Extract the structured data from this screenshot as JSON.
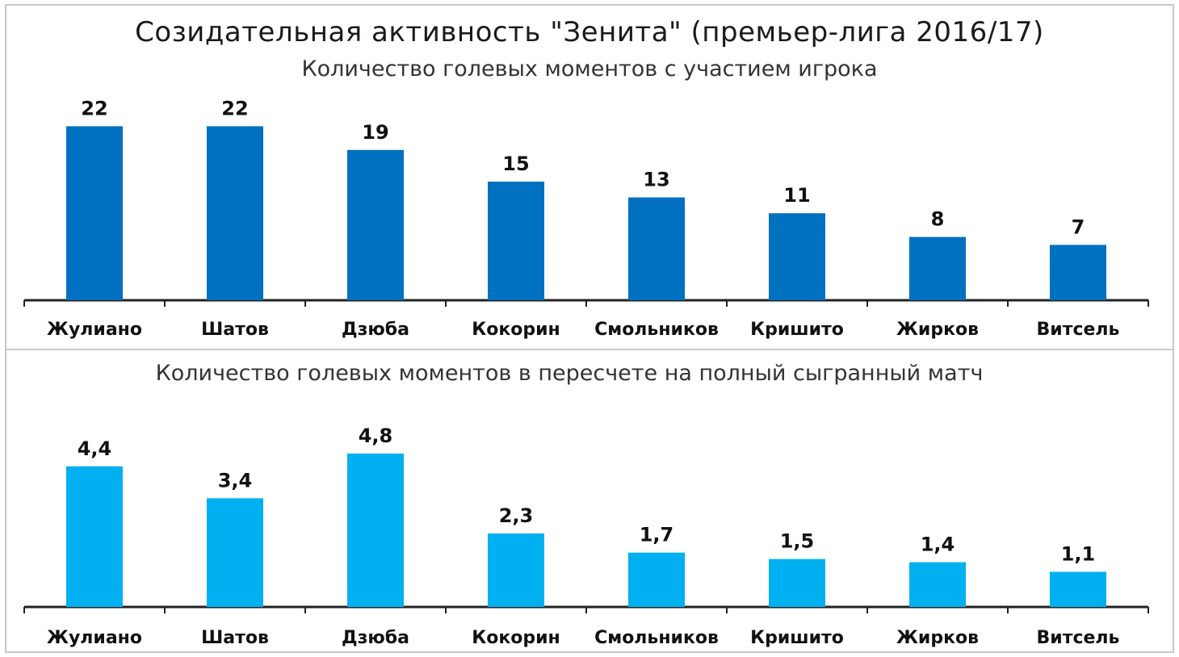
{
  "title": "Созидательная активность \"Зенита\" (премьер-лига 2016/17)",
  "colors": {
    "series1": "#0070C0",
    "series2": "#00B0F0",
    "axis": "#222222",
    "frame": "#c8c8c8"
  },
  "chart_data": [
    {
      "type": "bar",
      "title": "Количество голевых моментов с участием игрока",
      "categories": [
        "Жулиано",
        "Шатов",
        "Дзюба",
        "Кокорин",
        "Смольников",
        "Кришито",
        "Жирков",
        "Витсель"
      ],
      "values": [
        22,
        22,
        19,
        15,
        13,
        11,
        8,
        7
      ],
      "value_labels": [
        "22",
        "22",
        "19",
        "15",
        "13",
        "11",
        "8",
        "7"
      ],
      "grid": false
    },
    {
      "type": "bar",
      "title": "Количество голевых моментов в пересчете на полный сыгранный матч",
      "categories": [
        "Жулиано",
        "Шатов",
        "Дзюба",
        "Кокорин",
        "Смольников",
        "Кришито",
        "Жирков",
        "Витсель"
      ],
      "values": [
        4.4,
        3.4,
        4.8,
        2.3,
        1.7,
        1.5,
        1.4,
        1.1
      ],
      "value_labels": [
        "4,4",
        "3,4",
        "4,8",
        "2,3",
        "1,7",
        "1,5",
        "1,4",
        "1,1"
      ],
      "grid": false
    }
  ]
}
